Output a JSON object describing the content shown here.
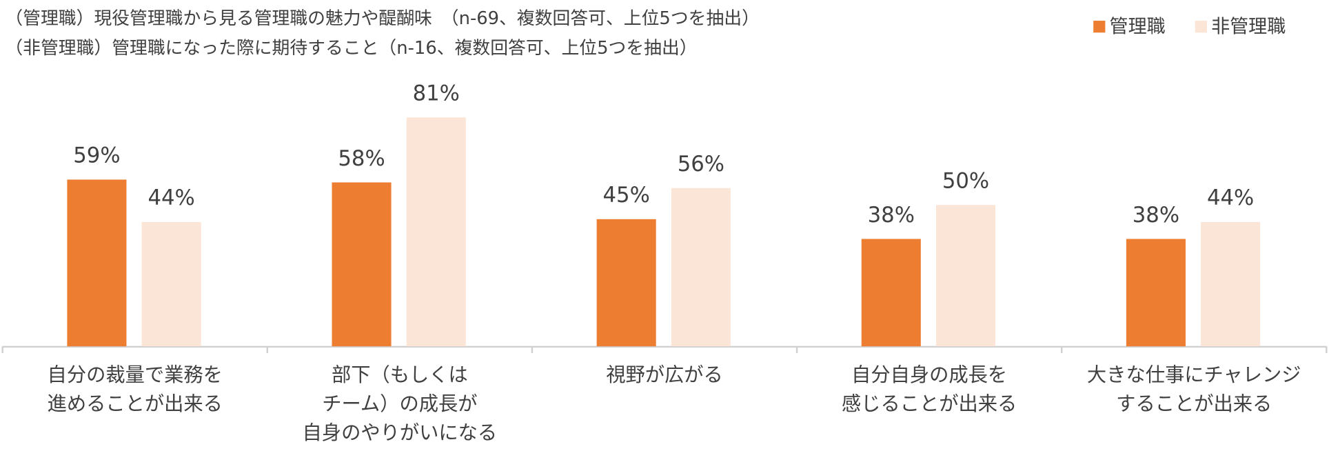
{
  "chart_data": {
    "type": "bar",
    "title": "（管理職）現役管理職から見る管理職の魅力や醍醐味　（n-69、複数回答可、上位5つを抽出）",
    "subtitle": "（非管理職）管理職になった際に期待すること（n-16、複数回答可、上位5つを抽出）",
    "categories": [
      "自分の裁量で業務を\n進めることが出来る",
      "部下（もしくは\nチーム）の成長が\n自身のやりがいになる",
      "視野が広がる",
      "自分自身の成長を\n感じることが出来る",
      "大きな仕事にチャレンジ\nすることが出来る"
    ],
    "series": [
      {
        "name": "管理職",
        "color": "#ED7D31",
        "values": [
          59,
          58,
          45,
          38,
          38
        ],
        "value_labels": [
          "59%",
          "58%",
          "45%",
          "38%",
          "38%"
        ]
      },
      {
        "name": "非管理職",
        "color": "#FBE5D6",
        "values": [
          44,
          81,
          56,
          50,
          44
        ],
        "value_labels": [
          "44%",
          "81%",
          "56%",
          "50%",
          "44%"
        ]
      }
    ],
    "legend": "top-right"
  }
}
